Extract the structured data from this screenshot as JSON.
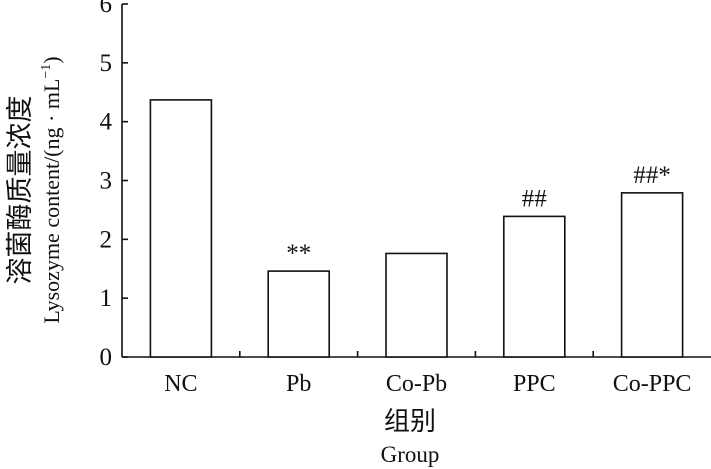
{
  "chart_data": {
    "type": "bar",
    "categories": [
      "NC",
      "Pb",
      "Co-Pb",
      "PPC",
      "Co-PPC"
    ],
    "values": [
      4.37,
      1.46,
      1.76,
      2.39,
      2.79
    ],
    "annotations": [
      "",
      "**",
      "",
      "##",
      "##*"
    ],
    "ylim": [
      0,
      6
    ],
    "yticks": [
      "0",
      "1",
      "2",
      "3",
      "4",
      "5",
      "6"
    ],
    "ylabel_cn": "溶菌酶质量浓度",
    "ylabel_en": "Lysozyme content/(ng · mL",
    "ylabel_en_sup": "−1",
    "ylabel_en_close": ")",
    "xlabel_cn": "组别",
    "xlabel_en": "Group",
    "grid": false,
    "legend": "none"
  }
}
